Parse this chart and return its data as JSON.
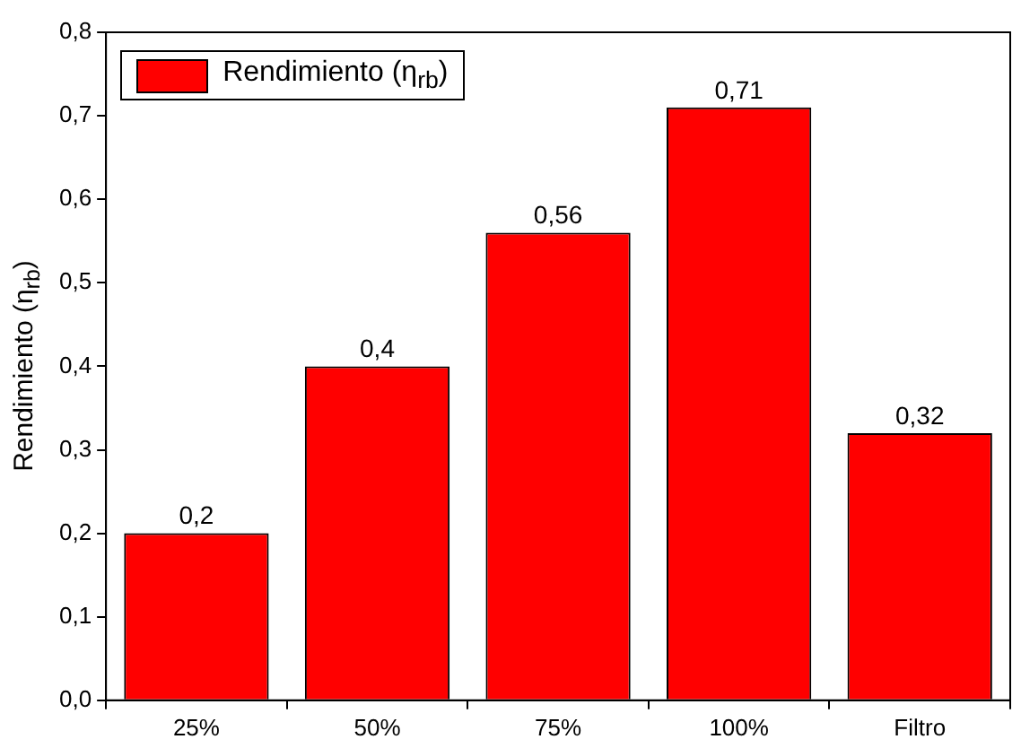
{
  "chart_data": {
    "type": "bar",
    "ylabel": "Rendimiento (η$_{rb}$)",
    "categories": [
      "25%",
      "50%",
      "75%",
      "100%",
      "Filtro"
    ],
    "series": [
      {
        "name": "Rendimiento (η$_{rb}$)",
        "color": "#ff0000",
        "values": [
          0.2,
          0.4,
          0.56,
          0.71,
          0.32
        ],
        "value_labels": [
          "0,2",
          "0,4",
          "0,56",
          "0,71",
          "0,32"
        ]
      }
    ],
    "ylim": [
      0,
      0.8
    ],
    "yticks": [
      {
        "value": 0,
        "label": "0,0"
      },
      {
        "value": 0.1,
        "label": "0,1"
      },
      {
        "value": 0.2,
        "label": "0,2"
      },
      {
        "value": 0.3,
        "label": "0,3"
      },
      {
        "value": 0.4,
        "label": "0,4"
      },
      {
        "value": 0.5,
        "label": "0,5"
      },
      {
        "value": 0.6,
        "label": "0,6"
      },
      {
        "value": 0.7,
        "label": "0,7"
      },
      {
        "value": 0.8,
        "label": "0,8"
      }
    ],
    "legend": "top left"
  }
}
